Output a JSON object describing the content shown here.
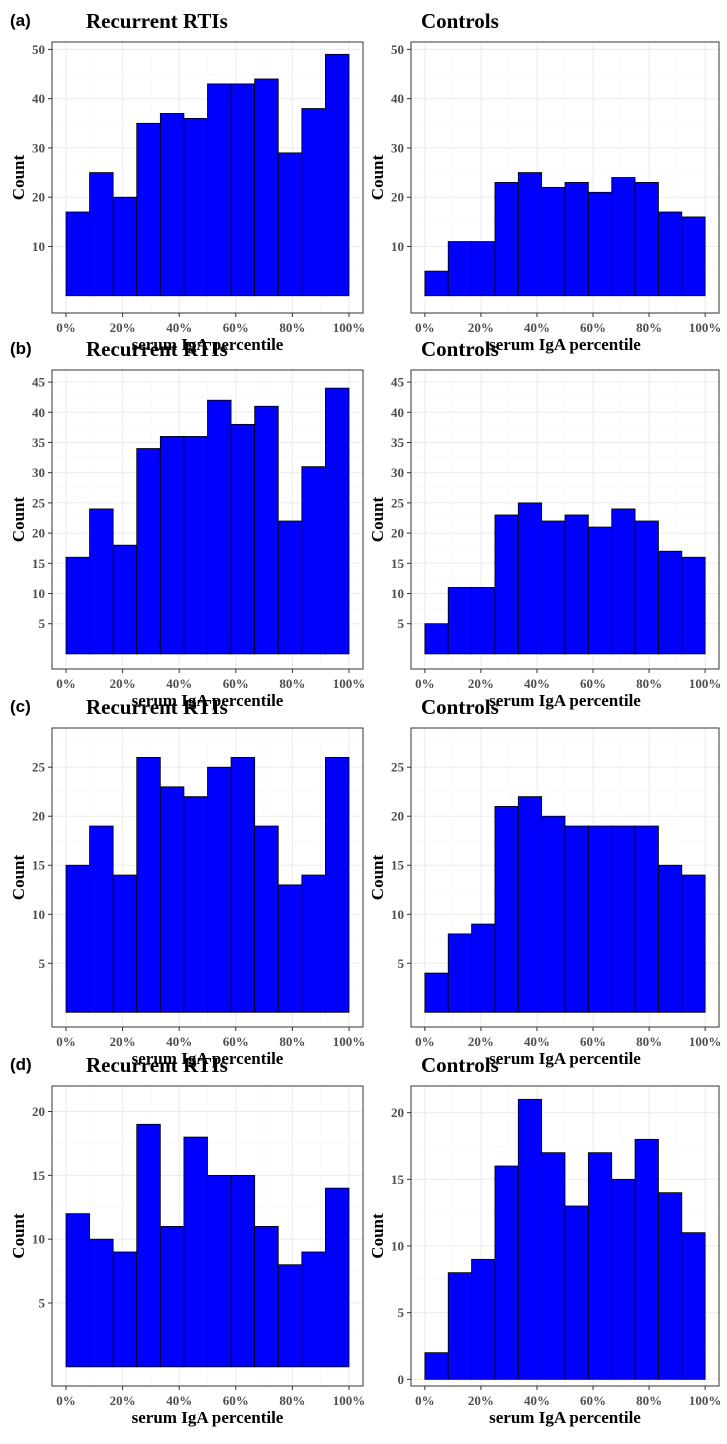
{
  "bar_color": "#0000ff",
  "chart_data": [
    {
      "type": "bar",
      "panel_label": "(a)",
      "title": "Recurrent RTIs",
      "xlabel": "serum IgA percentile",
      "ylabel": "Count",
      "x_ticks": [
        "0%",
        "20%",
        "40%",
        "60%",
        "80%",
        "100%"
      ],
      "y_ticks": [
        10,
        20,
        30,
        40,
        50
      ],
      "ylim": [
        -3.5,
        51.5
      ],
      "bin_edges": [
        0,
        8.33,
        16.67,
        25,
        33.33,
        41.67,
        50,
        58.33,
        66.67,
        75,
        83.33,
        91.67,
        100
      ],
      "values": [
        17,
        25,
        20,
        35,
        37,
        36,
        43,
        43,
        44,
        29,
        38,
        49
      ],
      "grid": true
    },
    {
      "type": "bar",
      "panel_label": "",
      "title": "Controls",
      "xlabel": "serum IgA percentile",
      "ylabel": "Count",
      "x_ticks": [
        "0%",
        "20%",
        "40%",
        "60%",
        "80%",
        "100%"
      ],
      "y_ticks": [
        10,
        20,
        30,
        40,
        50
      ],
      "ylim": [
        -3.5,
        51.5
      ],
      "bin_edges": [
        0,
        8.33,
        16.67,
        25,
        33.33,
        41.67,
        50,
        58.33,
        66.67,
        75,
        83.33,
        91.67,
        100
      ],
      "values": [
        5,
        11,
        11,
        23,
        25,
        22,
        23,
        21,
        24,
        23,
        17,
        16
      ],
      "grid": true
    },
    {
      "type": "bar",
      "panel_label": "(b)",
      "title": "Recurrent RTIs",
      "xlabel": "serum IgA percentile",
      "ylabel": "Count",
      "x_ticks": [
        "0%",
        "20%",
        "40%",
        "60%",
        "80%",
        "100%"
      ],
      "y_ticks": [
        5,
        10,
        15,
        20,
        25,
        30,
        35,
        40,
        45
      ],
      "ylim": [
        -2.5,
        47
      ],
      "bin_edges": [
        0,
        8.33,
        16.67,
        25,
        33.33,
        41.67,
        50,
        58.33,
        66.67,
        75,
        83.33,
        91.67,
        100
      ],
      "values": [
        16,
        24,
        18,
        34,
        36,
        36,
        42,
        38,
        41,
        22,
        31,
        44
      ],
      "grid": true
    },
    {
      "type": "bar",
      "panel_label": "",
      "title": "Controls",
      "xlabel": "serum IgA percentile",
      "ylabel": "Count",
      "x_ticks": [
        "0%",
        "20%",
        "40%",
        "60%",
        "80%",
        "100%"
      ],
      "y_ticks": [
        5,
        10,
        15,
        20,
        25,
        30,
        35,
        40,
        45
      ],
      "ylim": [
        -2.5,
        47
      ],
      "bin_edges": [
        0,
        8.33,
        16.67,
        25,
        33.33,
        41.67,
        50,
        58.33,
        66.67,
        75,
        83.33,
        91.67,
        100
      ],
      "values": [
        5,
        11,
        11,
        23,
        25,
        22,
        23,
        21,
        24,
        22,
        17,
        16
      ],
      "grid": true
    },
    {
      "type": "bar",
      "panel_label": "(c)",
      "title": "Recurrent RTIs",
      "xlabel": "serum IgA percentile",
      "ylabel": "Count",
      "x_ticks": [
        "0%",
        "20%",
        "40%",
        "60%",
        "80%",
        "100%"
      ],
      "y_ticks": [
        5,
        10,
        15,
        20,
        25
      ],
      "ylim": [
        -1.5,
        29
      ],
      "bin_edges": [
        0,
        8.33,
        16.67,
        25,
        33.33,
        41.67,
        50,
        58.33,
        66.67,
        75,
        83.33,
        91.67,
        100
      ],
      "values": [
        15,
        19,
        14,
        26,
        23,
        22,
        25,
        26,
        19,
        13,
        14,
        26
      ],
      "grid": true
    },
    {
      "type": "bar",
      "panel_label": "",
      "title": "Controls",
      "xlabel": "serum IgA percentile",
      "ylabel": "Count",
      "x_ticks": [
        "0%",
        "20%",
        "40%",
        "60%",
        "80%",
        "100%"
      ],
      "y_ticks": [
        5,
        10,
        15,
        20,
        25
      ],
      "ylim": [
        -1.5,
        29
      ],
      "bin_edges": [
        0,
        8.33,
        16.67,
        25,
        33.33,
        41.67,
        50,
        58.33,
        66.67,
        75,
        83.33,
        91.67,
        100
      ],
      "values": [
        4,
        8,
        9,
        21,
        22,
        20,
        19,
        19,
        19,
        19,
        15,
        14
      ],
      "grid": true
    },
    {
      "type": "bar",
      "panel_label": "(d)",
      "title": "Recurrent RTIs",
      "xlabel": "serum IgA percentile",
      "ylabel": "Count",
      "x_ticks": [
        "0%",
        "20%",
        "40%",
        "60%",
        "80%",
        "100%"
      ],
      "y_ticks": [
        5,
        10,
        15,
        20
      ],
      "ylim": [
        -1.5,
        22
      ],
      "bin_edges": [
        0,
        8.33,
        16.67,
        25,
        33.33,
        41.67,
        50,
        58.33,
        66.67,
        75,
        83.33,
        91.67,
        100
      ],
      "values": [
        12,
        10,
        9,
        19,
        11,
        18,
        15,
        15,
        11,
        8,
        9,
        14
      ],
      "grid": true
    },
    {
      "type": "bar",
      "panel_label": "",
      "title": "Controls",
      "xlabel": "serum IgA percentile",
      "ylabel": "Count",
      "x_ticks": [
        "0%",
        "20%",
        "40%",
        "60%",
        "80%",
        "100%"
      ],
      "y_ticks": [
        0,
        5,
        10,
        15,
        20
      ],
      "ylim": [
        -0.5,
        22
      ],
      "bin_edges": [
        0,
        8.33,
        16.67,
        25,
        33.33,
        41.67,
        50,
        58.33,
        66.67,
        75,
        83.33,
        91.67,
        100
      ],
      "values": [
        2,
        8,
        9,
        16,
        21,
        17,
        13,
        17,
        15,
        18,
        14,
        11
      ],
      "grid": true
    }
  ]
}
